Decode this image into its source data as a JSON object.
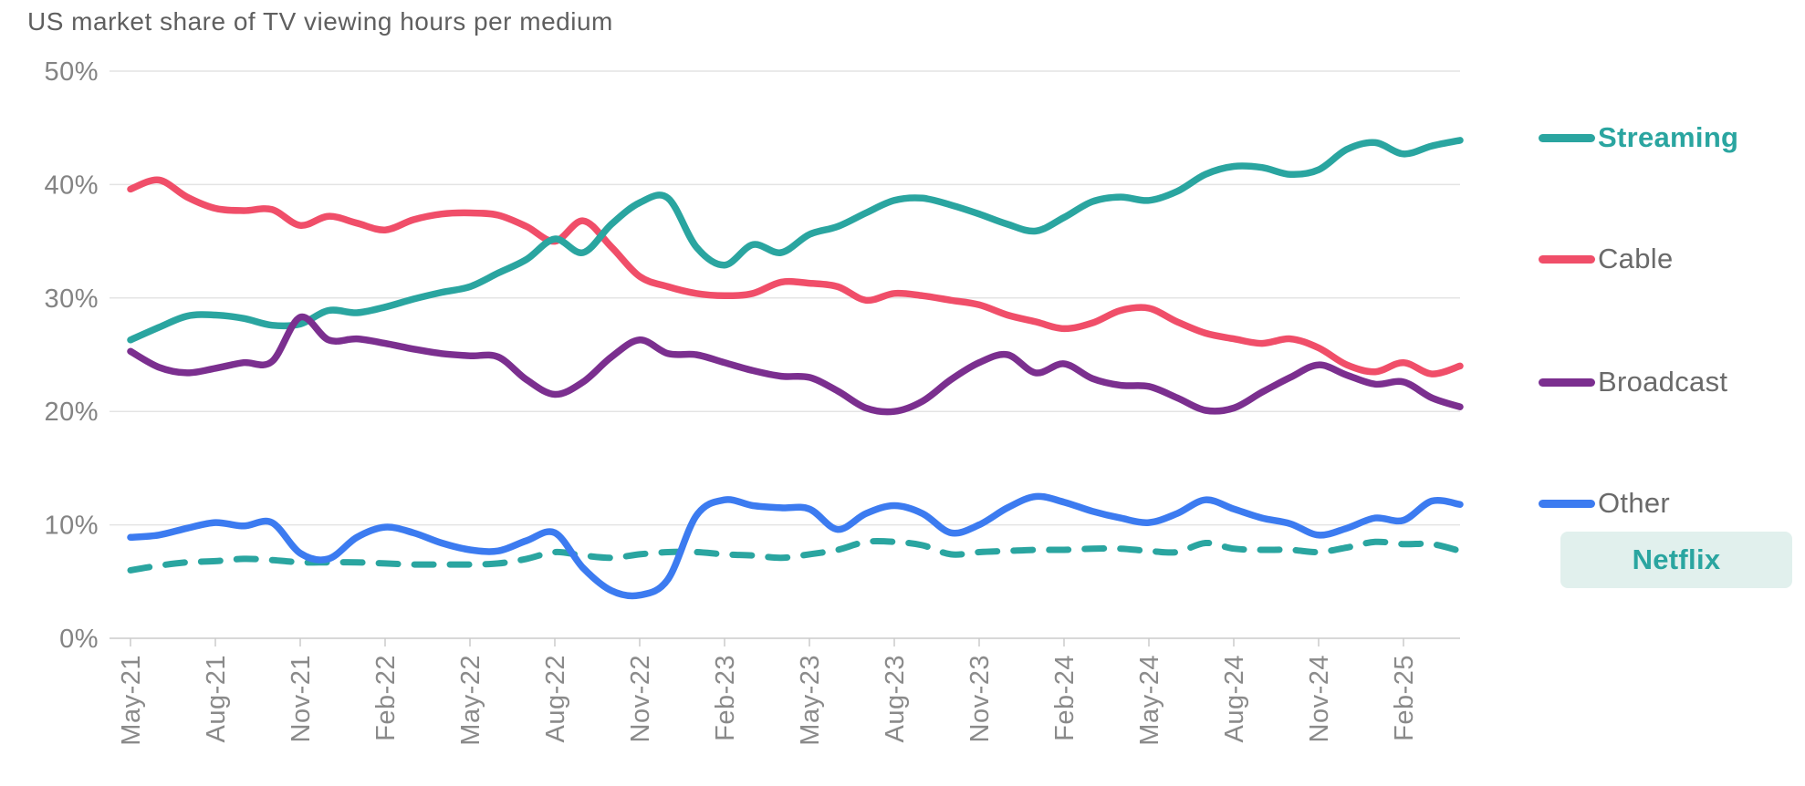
{
  "title": "US market share of TV viewing hours per medium",
  "colors": {
    "streaming": "#2AA5A0",
    "cable": "#F04E69",
    "broadcast": "#7B2F8F",
    "other": "#3C7BF0",
    "netflix": "#2AA5A0",
    "netflix_box_bg": "#E1F0ED",
    "grid_line": "#E4E4E4",
    "axis_line": "#CBCBCB",
    "title_text": "#5F5F5F",
    "tick_text": "#8A8A8A"
  },
  "legend": {
    "items": [
      {
        "label": "Streaming",
        "bold": true,
        "boxed": false,
        "series_index": 0
      },
      {
        "label": "Cable",
        "bold": false,
        "boxed": false,
        "series_index": 1
      },
      {
        "label": "Broadcast",
        "bold": false,
        "boxed": false,
        "series_index": 2
      },
      {
        "label": "Other",
        "bold": false,
        "boxed": false,
        "series_index": 3
      },
      {
        "label": "Netflix",
        "bold": true,
        "boxed": true,
        "series_index": 4
      }
    ]
  },
  "chart_data": {
    "type": "line",
    "title": "US market share of TV viewing hours per medium",
    "xlabel": "",
    "ylabel": "",
    "ylim": [
      0,
      50
    ],
    "y_tick_values": [
      0,
      10,
      20,
      30,
      40,
      50
    ],
    "y_tick_labels": [
      "0%",
      "10%",
      "20%",
      "30%",
      "40%",
      "50%"
    ],
    "grid": "horizontal",
    "legend_position": "right",
    "x_tick_labels": [
      "May-21",
      "Aug-21",
      "Nov-21",
      "Feb-22",
      "May-22",
      "Aug-22",
      "Nov-22",
      "Feb-23",
      "May-23",
      "Aug-23",
      "Nov-23",
      "Feb-24",
      "May-24",
      "Aug-24",
      "Nov-24",
      "Feb-25"
    ],
    "months_per_tick": 3,
    "x_months": [
      "May-21",
      "Jun-21",
      "Jul-21",
      "Aug-21",
      "Sep-21",
      "Oct-21",
      "Nov-21",
      "Dec-21",
      "Jan-22",
      "Feb-22",
      "Mar-22",
      "Apr-22",
      "May-22",
      "Jun-22",
      "Jul-22",
      "Aug-22",
      "Sep-22",
      "Oct-22",
      "Nov-22",
      "Dec-22",
      "Jan-23",
      "Feb-23",
      "Mar-23",
      "Apr-23",
      "May-23",
      "Jun-23",
      "Jul-23",
      "Aug-23",
      "Sep-23",
      "Oct-23",
      "Nov-23",
      "Dec-23",
      "Jan-24",
      "Feb-24",
      "Mar-24",
      "Apr-24",
      "May-24",
      "Jun-24",
      "Jul-24",
      "Aug-24",
      "Sep-24",
      "Oct-24",
      "Nov-24",
      "Dec-24",
      "Jan-25",
      "Feb-25",
      "Mar-25",
      "Apr-25"
    ],
    "series": [
      {
        "name": "Streaming",
        "color": "#2AA5A0",
        "style": "solid",
        "emphasized": true,
        "values": [
          26.3,
          27.4,
          28.4,
          28.5,
          28.2,
          27.6,
          27.7,
          28.9,
          28.7,
          29.2,
          29.9,
          30.5,
          31.0,
          32.2,
          33.4,
          35.2,
          34.0,
          36.5,
          38.4,
          38.8,
          34.5,
          32.9,
          34.7,
          34.0,
          35.6,
          36.3,
          37.5,
          38.6,
          38.8,
          38.2,
          37.4,
          36.5,
          35.9,
          37.1,
          38.5,
          38.9,
          38.6,
          39.4,
          40.9,
          41.6,
          41.5,
          40.9,
          41.3,
          43.1,
          43.7,
          42.7,
          43.4,
          43.9
        ]
      },
      {
        "name": "Cable",
        "color": "#F04E69",
        "style": "solid",
        "emphasized": false,
        "values": [
          39.6,
          40.4,
          38.9,
          37.9,
          37.7,
          37.8,
          36.4,
          37.2,
          36.6,
          36.0,
          36.9,
          37.4,
          37.5,
          37.3,
          36.3,
          35.0,
          36.8,
          34.5,
          31.9,
          31.0,
          30.4,
          30.2,
          30.4,
          31.4,
          31.3,
          31.0,
          29.8,
          30.4,
          30.2,
          29.8,
          29.4,
          28.5,
          27.9,
          27.3,
          27.8,
          28.9,
          29.1,
          27.9,
          26.9,
          26.4,
          26.0,
          26.4,
          25.6,
          24.1,
          23.5,
          24.3,
          23.3,
          24.0
        ]
      },
      {
        "name": "Broadcast",
        "color": "#7B2F8F",
        "style": "solid",
        "emphasized": false,
        "values": [
          25.3,
          23.9,
          23.4,
          23.8,
          24.3,
          24.4,
          28.3,
          26.3,
          26.4,
          26.0,
          25.5,
          25.1,
          24.9,
          24.8,
          22.8,
          21.5,
          22.6,
          24.8,
          26.3,
          25.1,
          25.0,
          24.3,
          23.6,
          23.1,
          23.0,
          21.8,
          20.3,
          20.0,
          20.9,
          22.8,
          24.3,
          25.0,
          23.4,
          24.2,
          22.9,
          22.3,
          22.2,
          21.2,
          20.1,
          20.3,
          21.7,
          23.0,
          24.1,
          23.2,
          22.4,
          22.6,
          21.2,
          20.4
        ]
      },
      {
        "name": "Other",
        "color": "#3C7BF0",
        "style": "solid",
        "emphasized": false,
        "values": [
          8.9,
          9.1,
          9.7,
          10.2,
          9.9,
          10.2,
          7.5,
          7.0,
          8.9,
          9.8,
          9.3,
          8.4,
          7.8,
          7.7,
          8.6,
          9.3,
          6.2,
          4.2,
          3.8,
          5.2,
          10.8,
          12.2,
          11.7,
          11.5,
          11.4,
          9.6,
          11.0,
          11.7,
          11.0,
          9.3,
          10.0,
          11.5,
          12.5,
          12.0,
          11.2,
          10.6,
          10.2,
          11.0,
          12.2,
          11.4,
          10.6,
          10.1,
          9.1,
          9.7,
          10.6,
          10.4,
          12.1,
          11.8
        ]
      },
      {
        "name": "Netflix",
        "color": "#2AA5A0",
        "style": "dashed",
        "emphasized": true,
        "values": [
          6.0,
          6.4,
          6.7,
          6.8,
          7.0,
          6.9,
          6.7,
          6.7,
          6.7,
          6.6,
          6.5,
          6.5,
          6.5,
          6.6,
          7.0,
          7.6,
          7.3,
          7.1,
          7.4,
          7.6,
          7.6,
          7.4,
          7.3,
          7.1,
          7.4,
          7.8,
          8.5,
          8.5,
          8.2,
          7.4,
          7.6,
          7.7,
          7.8,
          7.8,
          7.9,
          7.9,
          7.7,
          7.6,
          8.4,
          7.9,
          7.8,
          7.8,
          7.6,
          8.0,
          8.5,
          8.3,
          8.3,
          7.7
        ]
      }
    ]
  }
}
